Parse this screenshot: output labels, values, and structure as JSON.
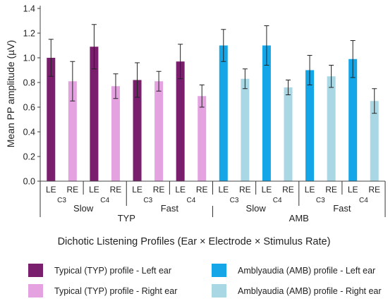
{
  "chart_data": {
    "type": "bar",
    "ylabel": "Mean PP amplitude (µV)",
    "xlabel": "Dichotic Listening Profiles (Ear × Electrode × Stimulus Rate)",
    "ylim": [
      0,
      1.4
    ],
    "yticks": [
      "0.0",
      "0.2",
      "0.4",
      "0.6",
      "0.8",
      "1.0",
      "1.2",
      "1.4"
    ],
    "grid": false,
    "legend_position": "bottom",
    "categories": [
      "LE",
      "RE",
      "LE",
      "RE",
      "LE",
      "RE",
      "LE",
      "RE",
      "LE",
      "RE",
      "LE",
      "RE",
      "LE",
      "RE",
      "LE",
      "RE"
    ],
    "electrodes": [
      "C3",
      "C4",
      "C3",
      "C4",
      "C3",
      "C4",
      "C3",
      "C4"
    ],
    "rates": [
      "Slow",
      "Fast",
      "Slow",
      "Fast"
    ],
    "groups": [
      "TYP",
      "AMB"
    ],
    "values": [
      1.0,
      0.81,
      1.09,
      0.77,
      0.82,
      0.81,
      0.97,
      0.69,
      1.1,
      0.83,
      1.1,
      0.76,
      0.9,
      0.85,
      0.99,
      0.65
    ],
    "errors": [
      0.15,
      0.16,
      0.18,
      0.1,
      0.14,
      0.08,
      0.14,
      0.09,
      0.13,
      0.08,
      0.16,
      0.06,
      0.12,
      0.09,
      0.15,
      0.1
    ],
    "series": [
      {
        "name": "Typical (TYP) profile - Left ear",
        "color": "#7a1f6e"
      },
      {
        "name": "Typical (TYP) profile - Right ear",
        "color": "#e4a3e0"
      },
      {
        "name": "Amblyaudia (AMB) profile - Left ear",
        "color": "#14a6e6"
      },
      {
        "name": "Amblyaudia (AMB) profile - Right ear",
        "color": "#a9d8e4"
      }
    ],
    "bar_series": [
      0,
      1,
      0,
      1,
      0,
      1,
      0,
      1,
      2,
      3,
      2,
      3,
      2,
      3,
      2,
      3
    ]
  }
}
